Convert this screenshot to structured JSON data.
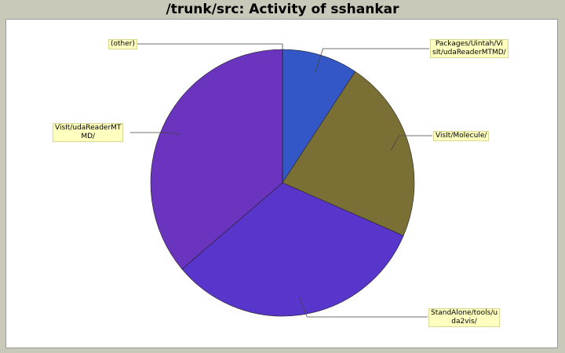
{
  "chart_data": {
    "type": "pie",
    "title": "/trunk/src: Activity of sshankar",
    "categories": [
      "Packages/Uintah/VisIt/udaReaderMTMD/",
      "VisIt/Molecule/",
      "StandAlone/tools/uda2vis/",
      "VisIt/udaReaderMTMD/",
      "(other)"
    ],
    "values": [
      9.3,
      22.2,
      32.3,
      36.2,
      0.0
    ],
    "colors": [
      "#3457c7",
      "#7a7036",
      "#5836cc",
      "#6a34be",
      "#6a34be"
    ]
  },
  "labels": {
    "l0": "Packages/Uintah/Vi\nsIt/udaReaderMTMD/",
    "l1": "VisIt/Molecule/",
    "l2": "StandAlone/tools/u\nda2vis/",
    "l3": "VisIt/udaReaderMT\nMD/",
    "l4": "(other)"
  }
}
